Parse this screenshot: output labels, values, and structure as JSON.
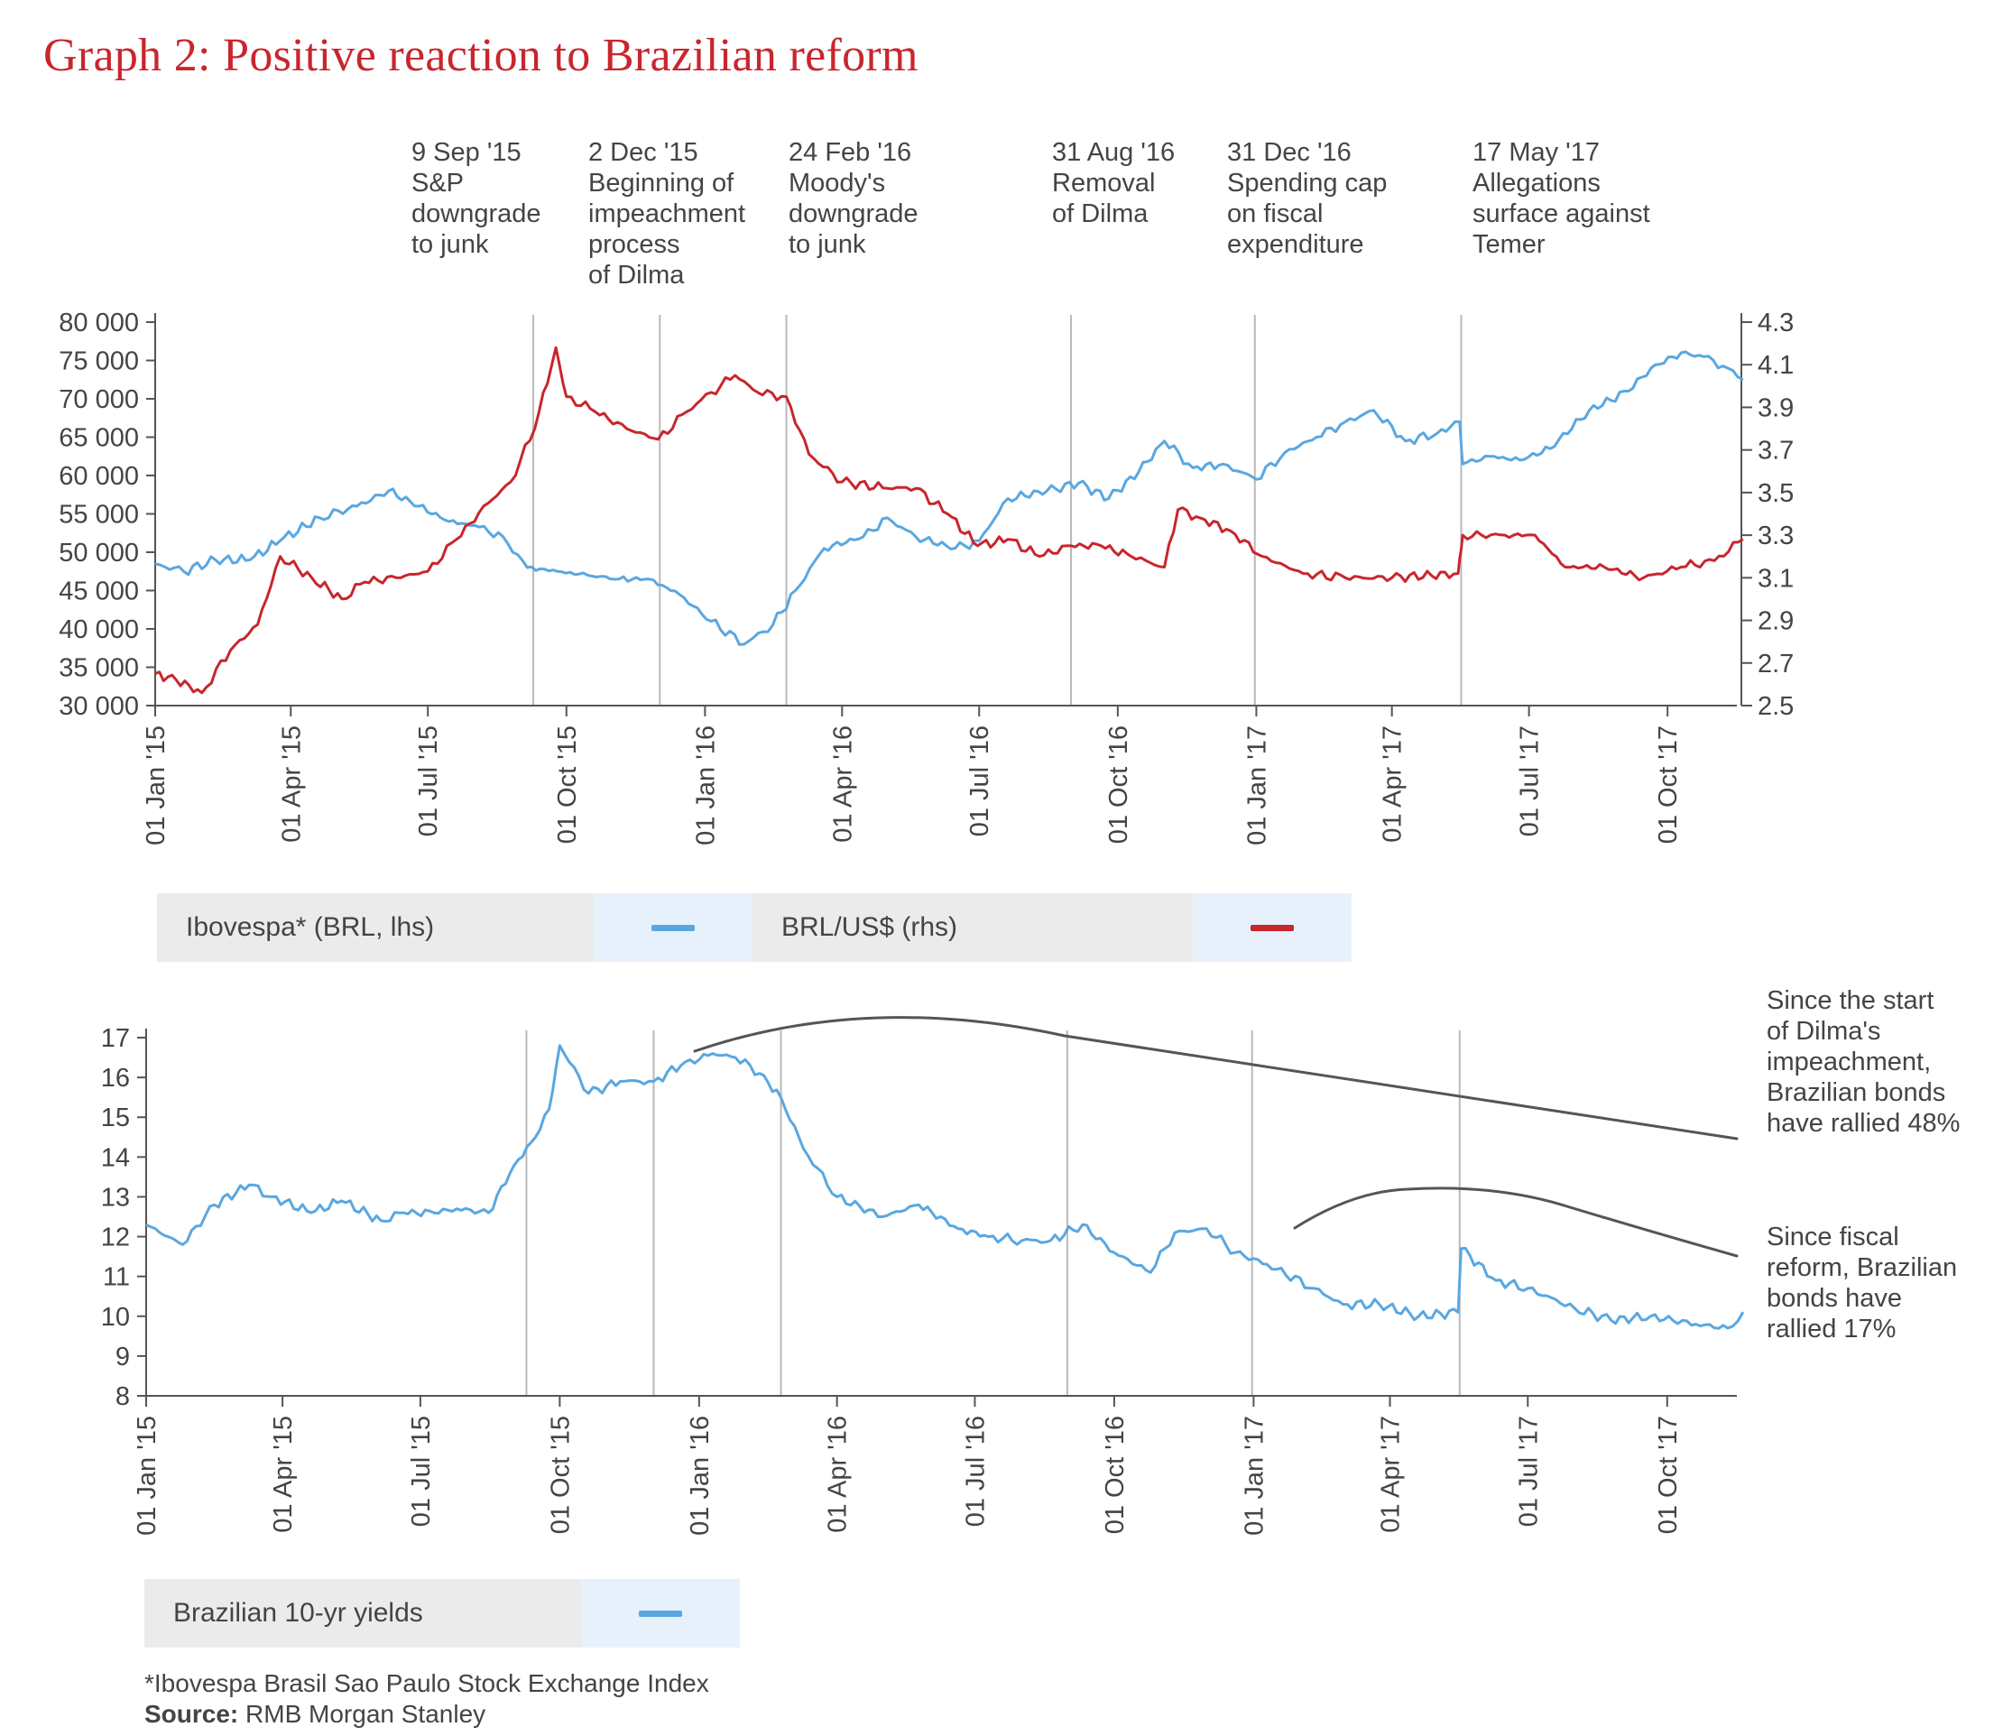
{
  "title": "Graph 2: Positive reaction to Brazilian reform",
  "annotations": [
    {
      "date": "9 Sep '15",
      "text": "S&P\ndowngrade\nto junk"
    },
    {
      "date": "2 Dec '15",
      "text": "Beginning of\nimpeachment\nprocess\nof Dilma"
    },
    {
      "date": "24 Feb '16",
      "text": "Moody's\ndowngrade\nto junk"
    },
    {
      "date": "31 Aug '16",
      "text": "Removal\nof Dilma"
    },
    {
      "date": "31 Dec '16",
      "text": "Spending cap\non fiscal\nexpenditure"
    },
    {
      "date": "17 May '17",
      "text": "Allegations\nsurface against\nTemer"
    }
  ],
  "legend_top": [
    {
      "label": "Ibovespa* (BRL, lhs)",
      "color": "#5aa7e0"
    },
    {
      "label": "BRL/US$ (rhs)",
      "color": "#c8262d"
    }
  ],
  "legend_bottom": [
    {
      "label": "Brazilian 10-yr yields",
      "color": "#5aa7e0"
    }
  ],
  "side_annotations": [
    "Since the start\nof Dilma's\nimpeachment,\nBrazilian bonds\nhave rallied 48%",
    "Since fiscal\nreform, Brazilian\nbonds have\nrallied 17%"
  ],
  "footnote": "*Ibovespa Brasil Sao Paulo Stock Exchange Index",
  "source_label": "Source:",
  "source_text": "RMB Morgan Stanley",
  "chart_data": [
    {
      "type": "line",
      "title": "",
      "x_ticks": [
        "01 Jan '15",
        "01 Apr '15",
        "01 Jul '15",
        "01 Oct '15",
        "01 Jan '16",
        "01 Apr '16",
        "01 Jul '16",
        "01 Oct '16",
        "01 Jan '17",
        "01 Apr '17",
        "01 Jul '17",
        "01 Oct '17"
      ],
      "y_ticks_left": [
        "80 000",
        "75 000",
        "70 000",
        "65 000",
        "60 000",
        "55 000",
        "50 000",
        "45 000",
        "40 000",
        "35 000",
        "30 000"
      ],
      "y_ticks_right": [
        "4.3",
        "4.1",
        "3.9",
        "3.7",
        "3.5",
        "3.3",
        "3.1",
        "2.9",
        "2.7",
        "2.5"
      ],
      "ylim_left": [
        30000,
        80000
      ],
      "ylim_right": [
        2.5,
        4.3
      ],
      "event_lines": [
        "2015-09-09",
        "2015-12-02",
        "2016-02-24",
        "2016-08-31",
        "2016-12-31",
        "2017-05-17"
      ],
      "series": [
        {
          "name": "Ibovespa* (BRL, lhs)",
          "axis": "left",
          "color": "#5aa7e0",
          "x": [
            "2015-01-01",
            "2015-01-20",
            "2015-02-10",
            "2015-03-05",
            "2015-03-25",
            "2015-04-20",
            "2015-05-15",
            "2015-06-05",
            "2015-06-25",
            "2015-07-15",
            "2015-08-01",
            "2015-08-20",
            "2015-09-05",
            "2015-09-25",
            "2015-10-15",
            "2015-11-05",
            "2015-11-25",
            "2015-12-15",
            "2016-01-05",
            "2016-01-27",
            "2016-02-15",
            "2016-03-01",
            "2016-03-20",
            "2016-04-15",
            "2016-05-01",
            "2016-05-20",
            "2016-06-15",
            "2016-07-01",
            "2016-07-20",
            "2016-08-15",
            "2016-09-05",
            "2016-09-25",
            "2016-10-15",
            "2016-11-01",
            "2016-11-20",
            "2016-12-10",
            "2017-01-01",
            "2017-01-20",
            "2017-02-10",
            "2017-03-01",
            "2017-03-20",
            "2017-04-10",
            "2017-05-01",
            "2017-05-16",
            "2017-05-18",
            "2017-06-05",
            "2017-06-25",
            "2017-07-15",
            "2017-08-10",
            "2017-09-05",
            "2017-09-20",
            "2017-10-10",
            "2017-10-25",
            "2017-11-10",
            "2017-11-20"
          ],
          "y": [
            48500,
            47500,
            49000,
            49000,
            51500,
            54500,
            56000,
            58000,
            56000,
            54000,
            53500,
            52000,
            48000,
            47500,
            47000,
            46500,
            46500,
            44500,
            41000,
            38000,
            40500,
            45000,
            50500,
            52000,
            54500,
            52000,
            50500,
            51500,
            57000,
            58000,
            59000,
            57000,
            60500,
            64500,
            61000,
            61500,
            59500,
            63000,
            65000,
            67000,
            68500,
            64500,
            65500,
            67000,
            61500,
            62500,
            62000,
            63500,
            68500,
            71000,
            74000,
            76000,
            75500,
            74000,
            72500
          ]
        },
        {
          "name": "BRL/US$ (rhs)",
          "axis": "right",
          "color": "#c8262d",
          "x": [
            "2015-01-01",
            "2015-01-15",
            "2015-02-01",
            "2015-02-20",
            "2015-03-10",
            "2015-03-25",
            "2015-04-15",
            "2015-05-05",
            "2015-05-20",
            "2015-06-10",
            "2015-07-01",
            "2015-07-20",
            "2015-08-10",
            "2015-08-25",
            "2015-09-10",
            "2015-09-24",
            "2015-10-01",
            "2015-10-20",
            "2015-11-10",
            "2015-12-01",
            "2015-12-20",
            "2016-01-05",
            "2016-01-21",
            "2016-02-05",
            "2016-02-24",
            "2016-03-10",
            "2016-04-01",
            "2016-05-01",
            "2016-05-20",
            "2016-06-10",
            "2016-06-30",
            "2016-07-20",
            "2016-08-10",
            "2016-08-31",
            "2016-09-20",
            "2016-10-10",
            "2016-11-01",
            "2016-11-10",
            "2016-11-25",
            "2016-12-15",
            "2017-01-05",
            "2017-02-01",
            "2017-03-01",
            "2017-04-01",
            "2017-05-15",
            "2017-05-18",
            "2017-06-15",
            "2017-07-05",
            "2017-07-25",
            "2017-08-20",
            "2017-09-15",
            "2017-10-10",
            "2017-11-01",
            "2017-11-20"
          ],
          "y": [
            2.65,
            2.62,
            2.56,
            2.76,
            2.88,
            3.2,
            3.1,
            3.0,
            3.08,
            3.1,
            3.13,
            3.28,
            3.45,
            3.55,
            3.8,
            4.18,
            3.95,
            3.88,
            3.8,
            3.75,
            3.88,
            3.97,
            4.05,
            3.97,
            3.95,
            3.68,
            3.55,
            3.52,
            3.52,
            3.4,
            3.25,
            3.28,
            3.2,
            3.25,
            3.25,
            3.2,
            3.15,
            3.42,
            3.38,
            3.32,
            3.2,
            3.12,
            3.1,
            3.1,
            3.12,
            3.3,
            3.3,
            3.3,
            3.15,
            3.15,
            3.1,
            3.15,
            3.18,
            3.28
          ]
        }
      ]
    },
    {
      "type": "line",
      "title": "",
      "x_ticks": [
        "01 Jan '15",
        "01 Apr '15",
        "01 Jul '15",
        "01 Oct '15",
        "01 Jan '16",
        "01 Apr '16",
        "01 Jul '16",
        "01 Oct '16",
        "01 Jan '17",
        "01 Apr '17",
        "01 Jul '17",
        "01 Oct '17"
      ],
      "y_ticks": [
        "17",
        "16",
        "15",
        "14",
        "13",
        "12",
        "11",
        "10",
        "9",
        "8"
      ],
      "ylim": [
        8,
        17
      ],
      "event_lines": [
        "2015-09-09",
        "2015-12-02",
        "2016-02-24",
        "2016-08-31",
        "2016-12-31",
        "2017-05-17"
      ],
      "series": [
        {
          "name": "Brazilian 10-yr yields",
          "color": "#5aa7e0",
          "x": [
            "2015-01-01",
            "2015-01-25",
            "2015-02-15",
            "2015-03-10",
            "2015-03-25",
            "2015-04-20",
            "2015-05-10",
            "2015-06-05",
            "2015-06-20",
            "2015-07-10",
            "2015-07-25",
            "2015-08-15",
            "2015-09-01",
            "2015-09-15",
            "2015-09-24",
            "2015-10-01",
            "2015-10-20",
            "2015-11-10",
            "2015-12-02",
            "2015-12-20",
            "2016-01-10",
            "2016-01-25",
            "2016-02-10",
            "2016-02-24",
            "2016-03-10",
            "2016-04-01",
            "2016-05-01",
            "2016-05-25",
            "2016-06-20",
            "2016-07-10",
            "2016-08-01",
            "2016-08-20",
            "2016-09-10",
            "2016-10-01",
            "2016-10-25",
            "2016-11-10",
            "2016-12-01",
            "2016-12-20",
            "2017-01-10",
            "2017-02-10",
            "2017-03-01",
            "2017-03-25",
            "2017-04-20",
            "2017-05-16",
            "2017-05-18",
            "2017-06-10",
            "2017-07-01",
            "2017-08-01",
            "2017-08-25",
            "2017-09-20",
            "2017-10-20",
            "2017-11-10",
            "2017-11-20"
          ],
          "y": [
            12.3,
            11.8,
            12.8,
            13.3,
            13.0,
            12.6,
            12.9,
            12.4,
            12.6,
            12.6,
            12.7,
            12.6,
            13.8,
            14.5,
            15.2,
            16.8,
            15.6,
            15.9,
            15.9,
            16.3,
            16.6,
            16.5,
            16.1,
            15.5,
            14.2,
            13.0,
            12.5,
            12.8,
            12.2,
            12.0,
            11.9,
            11.9,
            12.3,
            11.6,
            11.1,
            12.1,
            12.2,
            11.6,
            11.3,
            10.7,
            10.3,
            10.3,
            10.0,
            10.1,
            11.7,
            10.9,
            10.7,
            10.2,
            9.9,
            10.0,
            9.8,
            9.7,
            10.1
          ]
        }
      ]
    }
  ]
}
